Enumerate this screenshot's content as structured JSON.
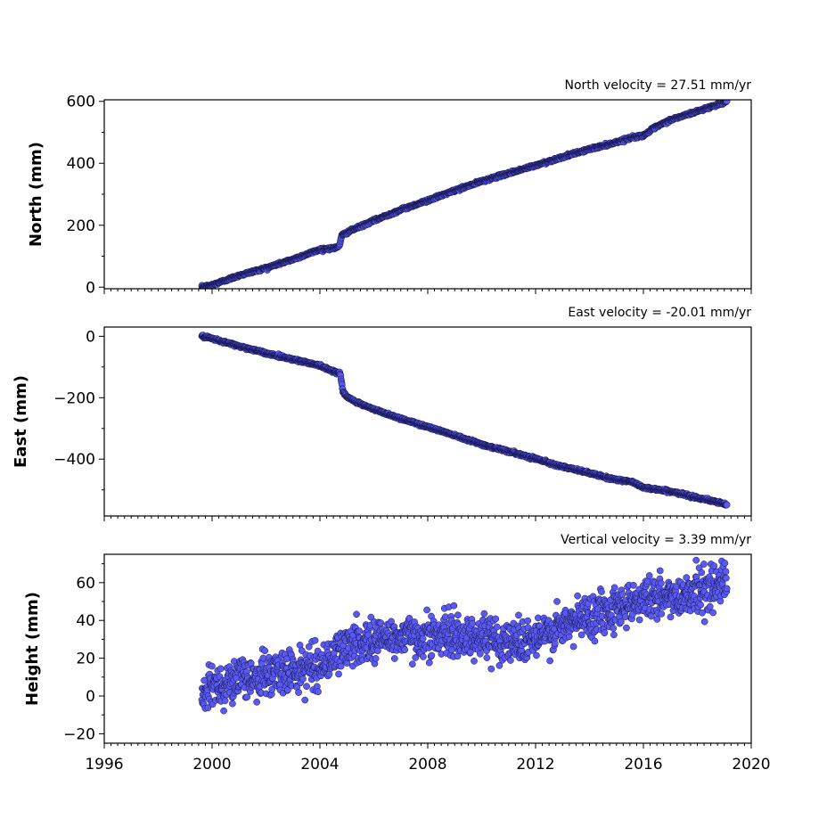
{
  "colors": {
    "marker_fill": "#5a5af2",
    "marker_edge": "#14144a",
    "axis": "#000000",
    "background": "#ffffff"
  },
  "chart_data": [
    {
      "type": "scatter",
      "title": "North velocity = 27.51 mm/yr",
      "ylabel": "North (mm)",
      "xlabel": "",
      "xlim": [
        1996,
        2020
      ],
      "ylim": [
        -5,
        605
      ],
      "yticks": [
        0,
        200,
        400,
        600
      ],
      "xticks": [],
      "grid": false,
      "legend": "none",
      "x_start": 1999.62,
      "x_end": 2019.1,
      "noise": 2.0,
      "trend": [
        [
          1999.62,
          0
        ],
        [
          2000.0,
          7
        ],
        [
          2001.0,
          38
        ],
        [
          2002.0,
          62
        ],
        [
          2003.0,
          90
        ],
        [
          2004.0,
          122
        ],
        [
          2004.6,
          127
        ],
        [
          2004.72,
          135
        ],
        [
          2004.82,
          168
        ],
        [
          2005.2,
          185
        ],
        [
          2006.0,
          215
        ],
        [
          2007.0,
          250
        ],
        [
          2008.0,
          280
        ],
        [
          2009.0,
          312
        ],
        [
          2010.0,
          342
        ],
        [
          2011.0,
          368
        ],
        [
          2012.0,
          393
        ],
        [
          2013.0,
          420
        ],
        [
          2014.0,
          446
        ],
        [
          2014.75,
          462
        ],
        [
          2015.5,
          482
        ],
        [
          2016.0,
          490
        ],
        [
          2016.4,
          514
        ],
        [
          2017.0,
          540
        ],
        [
          2018.0,
          568
        ],
        [
          2019.1,
          600
        ]
      ]
    },
    {
      "type": "scatter",
      "title": "East velocity = -20.01 mm/yr",
      "ylabel": "East (mm)",
      "xlabel": "",
      "xlim": [
        1996,
        2020
      ],
      "ylim": [
        -585,
        30
      ],
      "yticks": [
        0,
        -200,
        -400
      ],
      "ytick_labels": [
        "0",
        "−200",
        "−400"
      ],
      "xticks": [],
      "grid": false,
      "legend": "none",
      "x_start": 1999.62,
      "x_end": 2019.1,
      "noise": 2.0,
      "trend": [
        [
          1999.62,
          0
        ],
        [
          2000.0,
          -8
        ],
        [
          2001.0,
          -32
        ],
        [
          2002.0,
          -55
        ],
        [
          2003.0,
          -75
        ],
        [
          2004.0,
          -95
        ],
        [
          2004.3,
          -108
        ],
        [
          2004.75,
          -120
        ],
        [
          2004.85,
          -178
        ],
        [
          2005.0,
          -198
        ],
        [
          2005.5,
          -220
        ],
        [
          2006.0,
          -238
        ],
        [
          2007.0,
          -268
        ],
        [
          2008.0,
          -295
        ],
        [
          2009.0,
          -322
        ],
        [
          2010.0,
          -352
        ],
        [
          2011.0,
          -375
        ],
        [
          2012.0,
          -398
        ],
        [
          2013.0,
          -425
        ],
        [
          2014.0,
          -445
        ],
        [
          2014.7,
          -462
        ],
        [
          2015.6,
          -475
        ],
        [
          2016.0,
          -492
        ],
        [
          2017.0,
          -505
        ],
        [
          2018.0,
          -525
        ],
        [
          2019.1,
          -548
        ]
      ]
    },
    {
      "type": "scatter",
      "title": "Vertical velocity = 3.39 mm/yr",
      "ylabel": "Height (mm)",
      "xlabel": "",
      "xlim": [
        1996,
        2020
      ],
      "ylim": [
        -25,
        75
      ],
      "yticks": [
        -20,
        0,
        20,
        40,
        60
      ],
      "ytick_labels": [
        "−20",
        "0",
        "20",
        "40",
        "60"
      ],
      "xticks": [
        1996,
        2000,
        2004,
        2008,
        2012,
        2016,
        2020
      ],
      "grid": false,
      "legend": "none",
      "x_start": 1999.62,
      "x_end": 2019.1,
      "noise": 5.5,
      "trend": [
        [
          1999.62,
          -2
        ],
        [
          2000.0,
          5
        ],
        [
          2001.0,
          9
        ],
        [
          2002.0,
          11
        ],
        [
          2003.0,
          13
        ],
        [
          2004.0,
          16
        ],
        [
          2005.0,
          26
        ],
        [
          2006.0,
          30
        ],
        [
          2007.0,
          31
        ],
        [
          2008.0,
          32
        ],
        [
          2009.0,
          32
        ],
        [
          2010.0,
          31
        ],
        [
          2011.0,
          29
        ],
        [
          2012.0,
          30
        ],
        [
          2013.0,
          36
        ],
        [
          2014.0,
          43
        ],
        [
          2015.0,
          47
        ],
        [
          2016.0,
          52
        ],
        [
          2017.0,
          52
        ],
        [
          2018.0,
          56
        ],
        [
          2019.1,
          60
        ]
      ]
    }
  ]
}
